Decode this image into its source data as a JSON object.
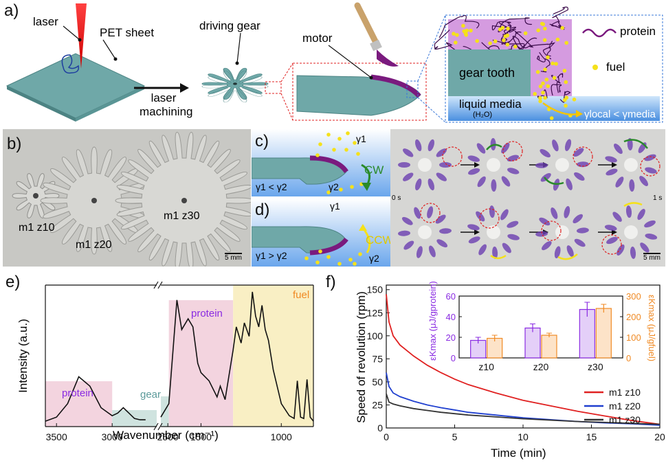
{
  "panel_a": {
    "label": "a)",
    "laser": "laser",
    "pet_sheet": "PET sheet",
    "driving_gear": "driving gear",
    "motor": "motor",
    "laser_machining_1": "laser",
    "laser_machining_2": "machining",
    "gear_tooth": "gear tooth",
    "protein": "protein",
    "fuel": "fuel",
    "liquid_media": "liquid media",
    "h2o": "(H₂O)",
    "gamma_relation": "γlocal < γmedia"
  },
  "panel_b": {
    "label": "b)",
    "gear_labels": [
      "m1 z10",
      "m1 z20",
      "m1 z30"
    ],
    "scale": "5 mm"
  },
  "panel_c": {
    "label": "c)",
    "gamma_top": "γ1",
    "gamma_tip": "γ2",
    "relation": "γ1 < γ2",
    "direction": "CW"
  },
  "panel_d": {
    "label": "d)",
    "gamma_top": "γ1",
    "gamma_tip": "γ2",
    "relation": "γ1 > γ2",
    "direction": "CCW"
  },
  "panel_cd_photos": {
    "t_start": "0 s",
    "t_end": "1 s",
    "scale": "5 mm"
  },
  "panel_e": {
    "label": "e)",
    "xlabel": "Wavenumber (cm⁻¹)",
    "ylabel": "Intensity (a.u.)",
    "region_labels": {
      "protein_left": "protein",
      "gear": "gear",
      "protein_right": "protein",
      "fuel": "fuel"
    },
    "xticks": [
      "3500",
      "3000",
      "2500",
      "1500",
      "1000"
    ]
  },
  "panel_f": {
    "label": "f)",
    "xlabel": "Time (min)",
    "ylabel": "Speed of revolution (rpm)",
    "xticks": [
      "0",
      "5",
      "10",
      "15",
      "20"
    ],
    "yticks": [
      "0",
      "25",
      "50",
      "75",
      "100",
      "125",
      "150"
    ],
    "inset": {
      "categories": [
        "z10",
        "z20",
        "z30"
      ],
      "left_ticks": [
        "0",
        "20",
        "40",
        "60"
      ],
      "right_ticks": [
        "0",
        "100",
        "200",
        "300"
      ],
      "left_label": "εKmax (μJ/gprotein)",
      "right_label": "εKmax (μJ/gfuel)"
    }
  },
  "colors": {
    "gear_teal": "#6fa8a8",
    "protein_purple": "#7a1a7e",
    "fuel_yellow": "#f5e11a",
    "protein_region": "#f3d4df",
    "gear_region": "#cfe3df",
    "fuel_region": "#f9efc4",
    "z10": "#e02020",
    "z20": "#1f3fcf",
    "z30": "#333333",
    "inset_purple": "#8a2be2",
    "inset_orange": "#f08a24"
  },
  "chart_data": [
    {
      "type": "line",
      "title": "",
      "xlabel": "Wavenumber (cm⁻¹)",
      "ylabel": "Intensity (a.u.)",
      "x_axis": "reversed, broken between 2500 and 1750",
      "series": [
        {
          "name": "",
          "x": [
            3600,
            3500,
            3400,
            3300,
            3200,
            3100,
            3000,
            2950,
            2900,
            2850,
            2800,
            2750,
            2700,
            1750,
            1700,
            1650,
            1620,
            1580,
            1550,
            1520,
            1500,
            1450,
            1400,
            1380,
            1350,
            1300,
            1280,
            1250,
            1230,
            1200,
            1180,
            1160,
            1140,
            1120,
            1100,
            1080,
            1050,
            1000,
            950,
            920,
            900,
            880,
            860,
            840,
            820,
            800
          ],
          "y": [
            0.02,
            0.05,
            0.15,
            0.35,
            0.28,
            0.12,
            0.06,
            0.08,
            0.12,
            0.08,
            0.04,
            0.03,
            0.03,
            0.05,
            0.15,
            0.92,
            0.7,
            0.78,
            0.72,
            0.45,
            0.38,
            0.32,
            0.2,
            0.28,
            0.18,
            0.55,
            0.72,
            0.6,
            0.75,
            0.65,
            0.98,
            0.8,
            0.72,
            0.88,
            0.7,
            0.62,
            0.4,
            0.15,
            0.06,
            0.04,
            0.32,
            0.05,
            0.04,
            0.33,
            0.05,
            0.02
          ]
        }
      ],
      "shaded_regions": [
        {
          "label": "protein",
          "from": 3600,
          "to": 3000
        },
        {
          "label": "gear",
          "from": 3000,
          "to": 2600
        },
        {
          "label": "gear",
          "from": 1750,
          "to": 1700
        },
        {
          "label": "protein",
          "from": 1700,
          "to": 1300
        },
        {
          "label": "fuel",
          "from": 1300,
          "to": 800
        }
      ]
    },
    {
      "type": "line",
      "title": "",
      "xlabel": "Time (min)",
      "ylabel": "Speed of revolution (rpm)",
      "xlim": [
        0,
        20
      ],
      "ylim": [
        0,
        155
      ],
      "series": [
        {
          "name": "m1 z10",
          "x": [
            0,
            0.2,
            0.5,
            1,
            2,
            3,
            4,
            5,
            6,
            8,
            10,
            12,
            14,
            16,
            18,
            20
          ],
          "y": [
            145,
            115,
            100,
            90,
            78,
            68,
            60,
            53,
            47,
            38,
            30,
            24,
            18,
            13,
            8,
            4
          ]
        },
        {
          "name": "m1 z20",
          "x": [
            0,
            0.2,
            0.5,
            1,
            2,
            3,
            4,
            5,
            6,
            8,
            10,
            12,
            14,
            16,
            18,
            20
          ],
          "y": [
            60,
            45,
            38,
            34,
            29,
            25,
            22,
            19.5,
            17,
            14,
            11,
            9,
            7,
            5.5,
            4.5,
            3
          ]
        },
        {
          "name": "m1 z30",
          "x": [
            0,
            0.2,
            0.5,
            1,
            2,
            3,
            4,
            5,
            6,
            8,
            10,
            12,
            14,
            16,
            18,
            20
          ],
          "y": [
            37,
            28,
            26,
            24,
            21,
            19,
            17,
            15.5,
            14,
            12,
            10,
            8.5,
            7,
            6,
            5,
            4
          ]
        }
      ]
    },
    {
      "type": "bar",
      "title": "",
      "categories": [
        "z10",
        "z20",
        "z30"
      ],
      "series": [
        {
          "name": "εKmax (μJ/gprotein)",
          "values": [
            17,
            29,
            47
          ],
          "errors": [
            3,
            4,
            7
          ],
          "axis": "left",
          "ylim": [
            0,
            60
          ]
        },
        {
          "name": "εKmax (μJ/gfuel)",
          "values": [
            95,
            110,
            240
          ],
          "errors": [
            15,
            10,
            20
          ],
          "axis": "right",
          "ylim": [
            0,
            300
          ]
        }
      ]
    }
  ]
}
